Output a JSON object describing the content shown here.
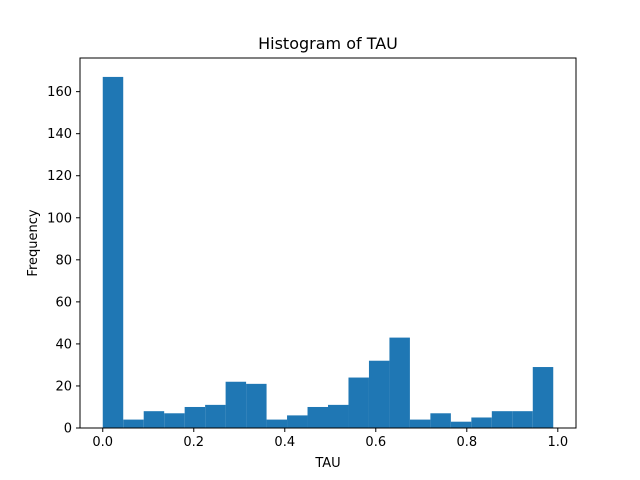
{
  "chart_data": {
    "type": "bar",
    "title": "Histogram of TAU",
    "xlabel": "TAU",
    "ylabel": "Frequency",
    "xlim": [
      -0.05,
      1.04
    ],
    "ylim": [
      0,
      176
    ],
    "x_ticks": [
      0.0,
      0.2,
      0.4,
      0.6,
      0.8,
      1.0
    ],
    "x_tick_labels": [
      "0.0",
      "0.2",
      "0.4",
      "0.6",
      "0.8",
      "1.0"
    ],
    "y_ticks": [
      0,
      20,
      40,
      60,
      80,
      100,
      120,
      140,
      160
    ],
    "y_tick_labels": [
      "0",
      "20",
      "40",
      "60",
      "80",
      "100",
      "120",
      "140",
      "160"
    ],
    "bar_color": "#1f77b4",
    "grid": false,
    "legend": "none",
    "bins": [
      {
        "x0": 0.0,
        "x1": 0.045,
        "count": 167
      },
      {
        "x0": 0.045,
        "x1": 0.09,
        "count": 4
      },
      {
        "x0": 0.09,
        "x1": 0.135,
        "count": 8
      },
      {
        "x0": 0.135,
        "x1": 0.18,
        "count": 7
      },
      {
        "x0": 0.18,
        "x1": 0.225,
        "count": 10
      },
      {
        "x0": 0.225,
        "x1": 0.27,
        "count": 11
      },
      {
        "x0": 0.27,
        "x1": 0.315,
        "count": 22
      },
      {
        "x0": 0.315,
        "x1": 0.36,
        "count": 21
      },
      {
        "x0": 0.36,
        "x1": 0.405,
        "count": 4
      },
      {
        "x0": 0.405,
        "x1": 0.45,
        "count": 6
      },
      {
        "x0": 0.45,
        "x1": 0.495,
        "count": 10
      },
      {
        "x0": 0.495,
        "x1": 0.54,
        "count": 11
      },
      {
        "x0": 0.54,
        "x1": 0.585,
        "count": 24
      },
      {
        "x0": 0.585,
        "x1": 0.63,
        "count": 32
      },
      {
        "x0": 0.63,
        "x1": 0.675,
        "count": 43
      },
      {
        "x0": 0.675,
        "x1": 0.72,
        "count": 4
      },
      {
        "x0": 0.72,
        "x1": 0.765,
        "count": 7
      },
      {
        "x0": 0.765,
        "x1": 0.81,
        "count": 3
      },
      {
        "x0": 0.81,
        "x1": 0.855,
        "count": 5
      },
      {
        "x0": 0.855,
        "x1": 0.9,
        "count": 8
      },
      {
        "x0": 0.9,
        "x1": 0.945,
        "count": 8
      },
      {
        "x0": 0.945,
        "x1": 0.99,
        "count": 29
      }
    ]
  }
}
